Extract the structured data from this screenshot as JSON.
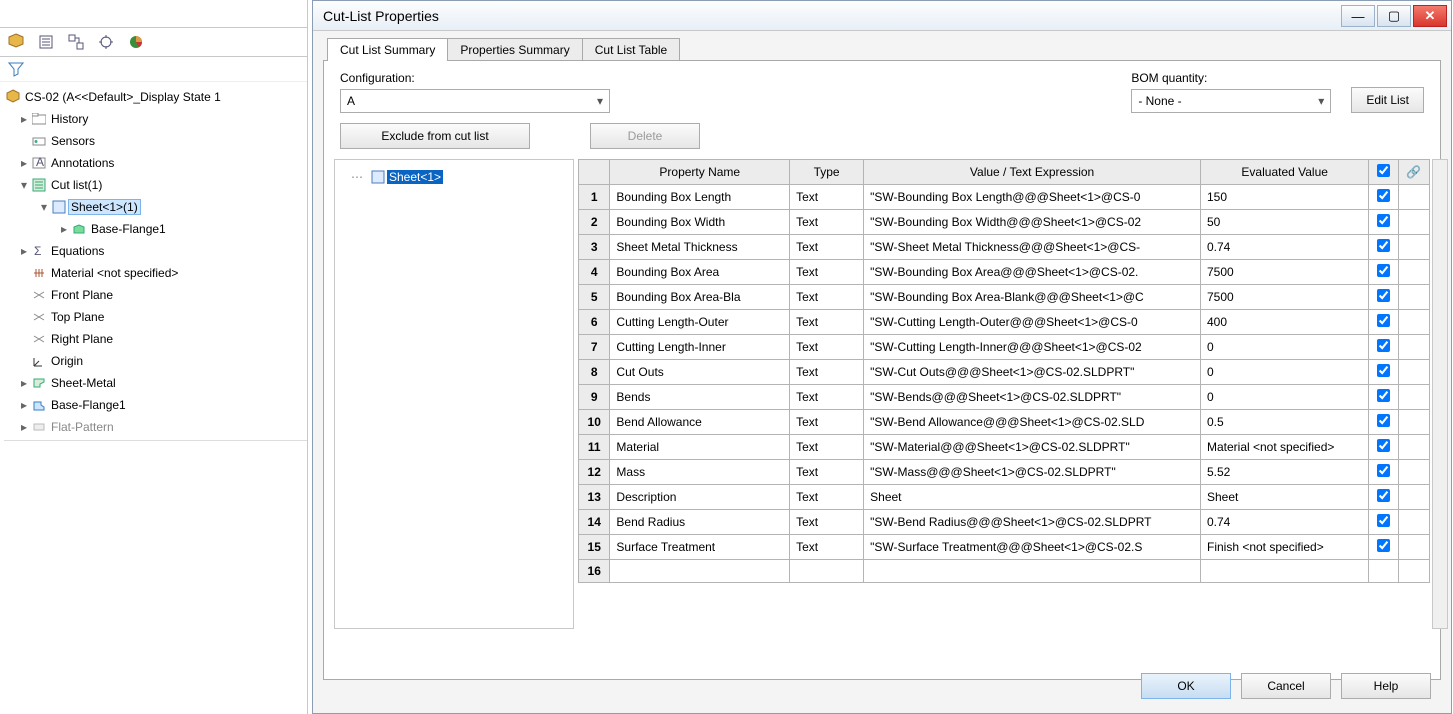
{
  "colors": {
    "accent": "#0a64c2",
    "border": "#a9a9a9",
    "header_bg": "#ececec",
    "sel_bg": "#cde6ff"
  },
  "left_tree": {
    "root": "CS-02  (A<<Default>_Display State 1",
    "items": [
      "History",
      "Sensors",
      "Annotations",
      "Cut list(1)",
      "Sheet<1>(1)",
      "Base-Flange1",
      "Equations",
      "Material <not specified>",
      "Front Plane",
      "Top Plane",
      "Right Plane",
      "Origin",
      "Sheet-Metal",
      "Base-Flange1",
      "Flat-Pattern"
    ]
  },
  "dialog": {
    "title": "Cut-List Properties",
    "tabs": [
      "Cut List Summary",
      "Properties Summary",
      "Cut List Table"
    ],
    "active_tab": 0,
    "configuration_label": "Configuration:",
    "configuration_value": "A",
    "bom_label": "BOM quantity:",
    "bom_value": "- None -",
    "edit_list_btn": "Edit List",
    "exclude_btn": "Exclude from cut list",
    "delete_btn": "Delete",
    "mini_tree_item": "Sheet<1>",
    "buttons": {
      "ok": "OK",
      "cancel": "Cancel",
      "help": "Help"
    },
    "grid": {
      "headers": [
        "",
        "Property Name",
        "Type",
        "Value / Text Expression",
        "Evaluated Value",
        "",
        ""
      ],
      "col_widths": [
        "28px",
        "160px",
        "66px",
        "300px",
        "150px",
        "26px",
        "26px"
      ],
      "rows": [
        {
          "n": 1,
          "prop": "Bounding Box Length",
          "type": "Text",
          "val": "\"SW-Bounding Box Length@@@Sheet<1>@CS-0",
          "eval": "150",
          "c": true
        },
        {
          "n": 2,
          "prop": "Bounding Box Width",
          "type": "Text",
          "val": "\"SW-Bounding Box Width@@@Sheet<1>@CS-02",
          "eval": "50",
          "c": true
        },
        {
          "n": 3,
          "prop": "Sheet Metal Thickness",
          "type": "Text",
          "val": "\"SW-Sheet Metal Thickness@@@Sheet<1>@CS-",
          "eval": "0.74",
          "c": true
        },
        {
          "n": 4,
          "prop": "Bounding Box Area",
          "type": "Text",
          "val": "\"SW-Bounding Box Area@@@Sheet<1>@CS-02.",
          "eval": "7500",
          "c": true
        },
        {
          "n": 5,
          "prop": "Bounding Box Area-Bla",
          "type": "Text",
          "val": "\"SW-Bounding Box Area-Blank@@@Sheet<1>@C",
          "eval": "7500",
          "c": true
        },
        {
          "n": 6,
          "prop": "Cutting Length-Outer",
          "type": "Text",
          "val": "\"SW-Cutting Length-Outer@@@Sheet<1>@CS-0",
          "eval": "400",
          "c": true
        },
        {
          "n": 7,
          "prop": "Cutting Length-Inner",
          "type": "Text",
          "val": "\"SW-Cutting Length-Inner@@@Sheet<1>@CS-02",
          "eval": "0",
          "c": true
        },
        {
          "n": 8,
          "prop": "Cut Outs",
          "type": "Text",
          "val": "\"SW-Cut Outs@@@Sheet<1>@CS-02.SLDPRT\"",
          "eval": "0",
          "c": true
        },
        {
          "n": 9,
          "prop": "Bends",
          "type": "Text",
          "val": "\"SW-Bends@@@Sheet<1>@CS-02.SLDPRT\"",
          "eval": "0",
          "c": true
        },
        {
          "n": 10,
          "prop": "Bend Allowance",
          "type": "Text",
          "val": "\"SW-Bend Allowance@@@Sheet<1>@CS-02.SLD",
          "eval": "0.5",
          "c": true
        },
        {
          "n": 11,
          "prop": "Material",
          "type": "Text",
          "val": "\"SW-Material@@@Sheet<1>@CS-02.SLDPRT\"",
          "eval": "Material <not specified>",
          "c": true
        },
        {
          "n": 12,
          "prop": "Mass",
          "type": "Text",
          "val": "\"SW-Mass@@@Sheet<1>@CS-02.SLDPRT\"",
          "eval": "5.52",
          "c": true
        },
        {
          "n": 13,
          "prop": "Description",
          "type": "Text",
          "val": "Sheet",
          "eval": "Sheet",
          "c": true
        },
        {
          "n": 14,
          "prop": "Bend Radius",
          "type": "Text",
          "val": "\"SW-Bend Radius@@@Sheet<1>@CS-02.SLDPRT",
          "eval": "0.74",
          "c": true
        },
        {
          "n": 15,
          "prop": "Surface Treatment",
          "type": "Text",
          "val": "\"SW-Surface Treatment@@@Sheet<1>@CS-02.S",
          "eval": "Finish <not specified>",
          "c": true
        }
      ],
      "next_row": 16
    }
  }
}
